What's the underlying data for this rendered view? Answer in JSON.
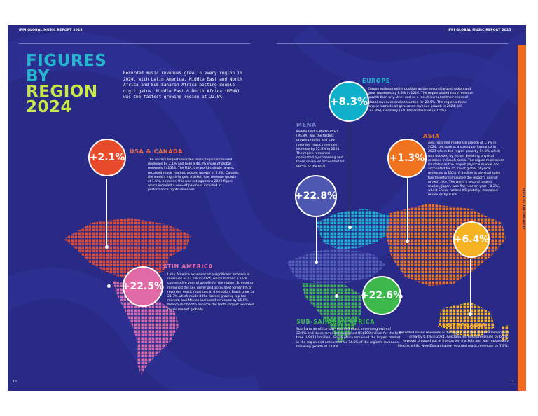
{
  "header": {
    "left_text": "IFPI GLOBAL MUSIC REPORT 2025",
    "right_text": "IFPI GLOBAL MUSIC REPORT 2025"
  },
  "title": {
    "line1": "FIGURES",
    "line2": "BY",
    "line3": "REGION",
    "line4": "2024"
  },
  "intro": "Recorded music revenues grew in every region in 2024, with Latin America, Middle East and North Africa and Sub-Saharan Africa posting double-digit gains. Middle East & North Africa (MENA) was the fastest growing region at 22.8%.",
  "regions": {
    "usa": {
      "value": "+2.1%",
      "name": "USA & CANADA",
      "description": "The world's largest recorded music region increased revenues by 2.1% and held a 40.3% share of global revenues in 2024. The USA, the world's single largest recorded music market, posted growth of 2.2%. Canada, the world's eighth-largest market, saw revenue growth of 1.5%, however, this was set against a 2023 figure which included a one-off payment included in performance rights revenues."
    },
    "latam": {
      "value": "+22.5%",
      "name": "LATIN AMERICA",
      "description": "Latin America experienced a significant increase in revenues of 22.5% in 2024, which marked a 15th consecutive year of growth for the region. Streaming remained the key driver and accounted for 87.8% of recorded music revenues in the region. Brazil grew by 21.7% which made it the fastest growing top ten market, and Mexico increased revenues by 15.6%. Mexico climbed to become the tenth-largest recorded music market globally."
    },
    "europe": {
      "value": "+8.3%",
      "name": "EUROPE",
      "description": "Europe maintained its position as the second largest region and grew revenues by 8.3% in 2024. The region added more revenue growth than any other and as a result increased their share of global revenues and accounted for 29.5%. The region's three largest markets all generated revenue growth in 2024: UK (+4.9%), Germany (+4.7%) and France (+7.5%)."
    },
    "mena": {
      "value": "+22.8%",
      "name": "MENA",
      "description": "Middle East & North Africa (MENA) was the fastest growing region and saw recorded music revenues increase by 22.8% in 2024. The region remained dominated by streaming and those revenues accounted for 99.5% of the total."
    },
    "asia": {
      "value": "+1.3%",
      "name": "ASIA",
      "description": "Asia recorded moderate growth of 1.3% in 2024, set against a strong performance in 2023 where the region grew by 14.0% which was boosted by record breaking physical releases in South Korea. The region maintained its status as the largest physical market and accounted for 45.1% of global physical revenues in 2024. A decline in physical sales has therefore impacted the region's overall growth rate. The world's second largest market, Japan, was flat year-on-year (-0.2%), whilst China, ranked #5 globally, increased revenues by 9.6%."
    },
    "ssa": {
      "value": "+22.6%",
      "name": "SUB-SAHARAN AFRICA",
      "description": "Sub-Saharan Africa saw recorded music revenue growth of 22.6% and these revenues surpassed US$100 million for the first time (US$110 million). South Africa remained the largest market in the region and accounted for 74.6% of the region's revenues, following growth of 14.4%."
    },
    "australasia": {
      "value": "+6.4%",
      "name": "AUSTRALASIA",
      "description": "Recorded music revenues in the region reached US$629 million and grew by 6.4% in 2024. Australia increased revenues by 6.1%, however dropped out of the top ten markets and was replaced by Mexico, whilst New Zealand grew recorded music revenues by 7.8%."
    }
  },
  "page_numbers": {
    "left": "10",
    "right": "11"
  },
  "side_label": "STATE OF THE INDUSTRY",
  "colors": {
    "background": "#282a86",
    "usa": "#e84a2c",
    "latam": "#e06aa6",
    "europe": "#0fb0c9",
    "mena": "#4e58b0",
    "asia": "#f07320",
    "ssa": "#3cb84c",
    "australasia": "#f6b324",
    "title_accent": "#c9e64a",
    "title_main": "#25b7cf"
  }
}
